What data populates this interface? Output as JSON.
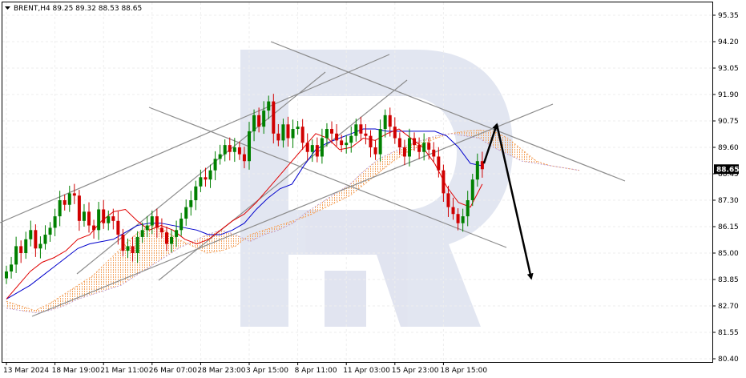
{
  "chart_data": {
    "type": "candlestick",
    "title": "BRENT,H4 89.25 89.32 88.53 88.65",
    "symbol": "BRENT",
    "timeframe": "H4",
    "ohlc": {
      "open": 89.25,
      "high": 89.32,
      "low": 88.53,
      "close": 88.65
    },
    "current_price_label": "88.65",
    "ylim": [
      80.4,
      95.35
    ],
    "y_ticks": [
      "95.35",
      "94.20",
      "93.05",
      "91.90",
      "90.75",
      "89.60",
      "88.45",
      "87.30",
      "86.15",
      "85.00",
      "83.85",
      "82.70",
      "81.55",
      "80.40"
    ],
    "x_ticks": [
      "13 Mar 2024",
      "18 Mar 19:00",
      "21 Mar 11:00",
      "26 Mar 07:00",
      "28 Mar 23:00",
      "3 Apr 15:00",
      "8 Apr 11:00",
      "11 Apr 03:00",
      "15 Apr 23:00",
      "18 Apr 15:00"
    ],
    "closes": [
      84.2,
      84.5,
      85.3,
      85.0,
      85.6,
      86.0,
      85.2,
      85.4,
      85.8,
      86.1,
      86.6,
      87.3,
      87.1,
      87.6,
      87.5,
      86.4,
      86.8,
      86.2,
      86.0,
      86.9,
      86.3,
      86.6,
      86.4,
      85.8,
      85.1,
      85.3,
      85.0,
      85.7,
      86.0,
      86.2,
      86.6,
      86.1,
      85.9,
      85.4,
      85.7,
      86.0,
      86.5,
      87.0,
      87.3,
      87.9,
      88.3,
      88.2,
      88.6,
      89.1,
      89.3,
      89.7,
      89.4,
      89.6,
      89.3,
      89.0,
      90.3,
      91.0,
      90.5,
      91.2,
      91.6,
      90.2,
      89.9,
      90.6,
      90.0,
      90.4,
      90.5,
      89.8,
      89.4,
      89.7,
      89.2,
      90.0,
      90.4,
      90.2,
      89.9,
      89.7,
      89.8,
      90.1,
      90.6,
      90.2,
      90.1,
      89.6,
      89.3,
      90.4,
      91.0,
      90.5,
      90.0,
      89.6,
      89.2,
      90.0,
      89.7,
      89.4,
      89.8,
      89.5,
      89.2,
      88.6,
      87.6,
      87.0,
      86.7,
      86.3,
      86.6,
      87.3,
      88.2,
      89.0,
      88.65
    ],
    "ichimoku": {
      "tenkan": [
        83.0,
        83.6,
        84.2,
        84.6,
        84.8,
        85.1,
        85.6,
        85.8,
        86.4,
        86.8,
        86.9,
        86.4,
        86.0,
        86.2,
        86.0,
        85.6,
        85.4,
        85.6,
        86.0,
        86.4,
        86.7,
        87.2,
        87.8,
        88.4,
        89.0,
        89.6,
        90.2,
        90.0,
        89.5,
        89.6,
        90.0,
        89.9,
        90.2,
        90.4,
        90.0,
        89.6,
        88.9,
        87.9,
        87.2,
        87.0,
        88.0
      ],
      "kijun": [
        83.0,
        83.3,
        83.6,
        84.0,
        84.4,
        84.8,
        85.2,
        85.4,
        85.5,
        85.6,
        85.9,
        86.2,
        86.3,
        86.3,
        86.2,
        86.1,
        86.0,
        85.8,
        85.8,
        86.0,
        86.3,
        86.9,
        87.4,
        87.8,
        88.0,
        88.8,
        89.5,
        89.8,
        90.0,
        90.2,
        90.4,
        90.4,
        90.3,
        90.3,
        90.3,
        90.3,
        90.3,
        90.1,
        89.6,
        88.9,
        88.8
      ],
      "span_a": [
        82.9,
        82.7,
        82.5,
        82.8,
        83.2,
        83.6,
        84.0,
        84.6,
        85.2,
        85.8,
        86.2,
        86.0,
        85.6,
        85.3,
        85.0,
        85.1,
        85.3,
        85.8,
        86.0,
        86.2,
        86.4,
        86.6,
        86.9,
        87.2,
        87.5,
        88.0,
        88.5,
        89.0,
        89.4,
        89.7,
        90.0,
        90.2,
        90.3,
        90.35,
        90.3,
        90.0,
        89.5,
        89.0,
        88.8,
        88.7,
        88.6
      ],
      "span_b": [
        82.6,
        82.5,
        82.4,
        82.5,
        82.7,
        83.0,
        83.2,
        83.4,
        83.6,
        84.0,
        84.4,
        84.8,
        85.2,
        85.5,
        85.8,
        86.0,
        85.8,
        85.5,
        85.8,
        86.0,
        86.3,
        86.8,
        87.2,
        87.6,
        88.0,
        88.6,
        89.1,
        89.4,
        89.7,
        89.9,
        90.1,
        90.2,
        90.1,
        90.0,
        89.6,
        89.3,
        89.0,
        88.9,
        88.8,
        88.7,
        88.6
      ]
    },
    "forecast_arrows": [
      {
        "from": "18 Apr 15:00",
        "from_value": 88.9,
        "to_value": 90.6
      },
      {
        "from_value": 90.6,
        "to_value": 83.9
      }
    ]
  }
}
